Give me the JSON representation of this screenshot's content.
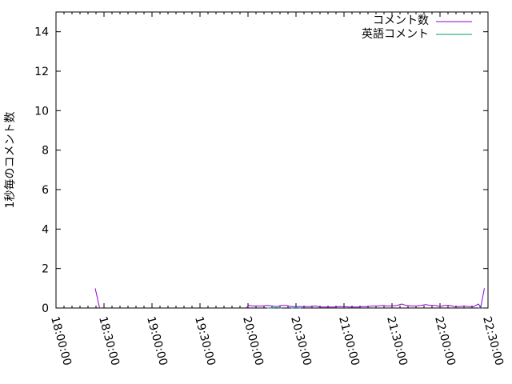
{
  "chart_data": {
    "type": "line",
    "title": "",
    "xlabel": "",
    "ylabel": "1秒毎のコメント数",
    "xlim": [
      "18:00:00",
      "22:30:00"
    ],
    "ylim": [
      0,
      15
    ],
    "yticks": [
      "0",
      "2",
      "4",
      "6",
      "8",
      "10",
      "12",
      "14"
    ],
    "xticks": [
      "18:00:00",
      "18:30:00",
      "19:00:00",
      "19:30:00",
      "20:00:00",
      "20:30:00",
      "21:00:00",
      "21:30:00",
      "22:00:00",
      "22:30:00"
    ],
    "grid": false,
    "legend": "top-right",
    "series": [
      {
        "name": "コメント数",
        "color": "#9400d3",
        "points": [
          [
            "18:24:30",
            1
          ],
          [
            "18:27:15",
            0
          ],
          null,
          [
            "19:58:50",
            0
          ],
          [
            "20:00:30",
            0.13
          ],
          [
            "20:03:00",
            0.1
          ],
          [
            "20:06:00",
            0.1
          ],
          [
            "20:09:00",
            0.1
          ],
          [
            "20:12:00",
            0.13
          ],
          [
            "20:15:00",
            0.1
          ],
          [
            "20:18:00",
            0.07
          ],
          [
            "20:21:00",
            0.13
          ],
          [
            "20:24:00",
            0.13
          ],
          [
            "20:27:00",
            0.07
          ],
          [
            "20:30:00",
            0.07
          ],
          [
            "20:33:00",
            0.07
          ],
          [
            "20:36:00",
            0.07
          ],
          [
            "20:39:00",
            0.07
          ],
          [
            "20:42:00",
            0.1
          ],
          [
            "20:45:00",
            0.05
          ],
          [
            "20:48:00",
            0.05
          ],
          [
            "20:51:00",
            0.05
          ],
          [
            "20:54:00",
            0.05
          ],
          [
            "20:57:00",
            0.07
          ],
          [
            "21:00:00",
            0.07
          ],
          [
            "21:03:00",
            0.05
          ],
          [
            "21:06:00",
            0.05
          ],
          [
            "21:09:00",
            0.05
          ],
          [
            "21:12:00",
            0.07
          ],
          [
            "21:15:00",
            0.07
          ],
          [
            "21:18:00",
            0.1
          ],
          [
            "21:21:00",
            0.1
          ],
          [
            "21:24:00",
            0.13
          ],
          [
            "21:27:00",
            0.1
          ],
          [
            "21:30:00",
            0.1
          ],
          [
            "21:33:00",
            0.13
          ],
          [
            "21:36:00",
            0.2
          ],
          [
            "21:39:00",
            0.13
          ],
          [
            "21:42:00",
            0.1
          ],
          [
            "21:45:00",
            0.1
          ],
          [
            "21:48:00",
            0.13
          ],
          [
            "21:51:00",
            0.17
          ],
          [
            "21:54:00",
            0.13
          ],
          [
            "21:57:00",
            0.13
          ],
          [
            "22:00:00",
            0.07
          ],
          [
            "22:03:00",
            0.13
          ],
          [
            "22:06:00",
            0.13
          ],
          [
            "22:09:00",
            0.07
          ],
          [
            "22:12:00",
            0.07
          ],
          [
            "22:15:00",
            0.1
          ],
          [
            "22:18:00",
            0.07
          ],
          [
            "22:21:00",
            0.07
          ],
          [
            "22:24:00",
            0.2
          ],
          [
            "22:25:30",
            0.05
          ],
          [
            "22:27:45",
            1
          ]
        ]
      },
      {
        "name": "英語コメント",
        "color": "#009e73",
        "points": [
          [
            "20:12:00",
            0
          ],
          [
            "20:18:00",
            0.02
          ],
          [
            "20:21:00",
            0
          ],
          null,
          [
            "20:27:00",
            0
          ],
          [
            "20:30:00",
            0.02
          ],
          [
            "20:33:00",
            0
          ],
          null,
          [
            "22:24:00",
            0
          ],
          [
            "22:25:30",
            0.03
          ],
          [
            "22:27:00",
            0
          ]
        ]
      }
    ]
  }
}
